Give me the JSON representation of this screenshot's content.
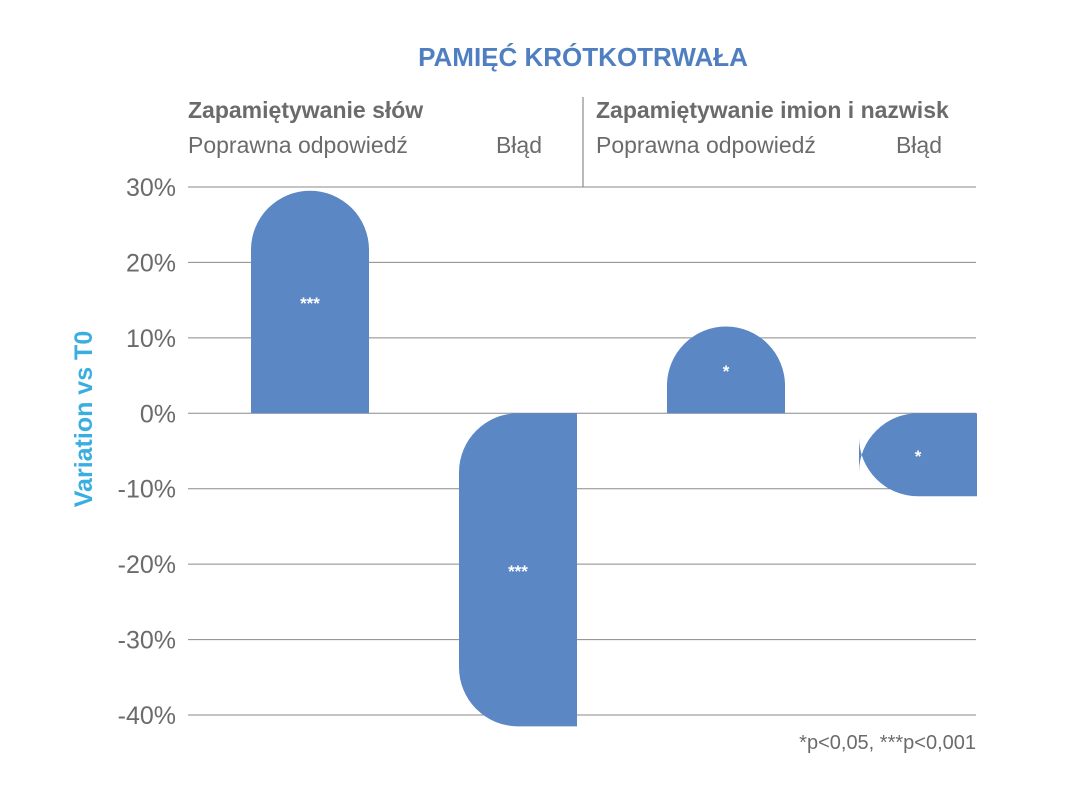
{
  "chart_data": {
    "type": "bar",
    "title": "PAMIĘĆ KRÓTKOTRWAŁA",
    "ylabel": "Variation vs T0",
    "ylim": [
      -40,
      30
    ],
    "yticks": [
      30,
      20,
      10,
      0,
      -10,
      -20,
      -30,
      -40
    ],
    "ytick_labels": [
      "30%",
      "20%",
      "10%",
      "0%",
      "-10%",
      "-20%",
      "-30%",
      "-40%"
    ],
    "groups": [
      {
        "name": "Zapamiętywanie słów",
        "categories": [
          "Poprawna odpowiedź",
          "Błąd"
        ]
      },
      {
        "name": "Zapamiętywanie imion i nazwisk",
        "categories": [
          "Poprawna odpowiedź",
          "Błąd"
        ]
      }
    ],
    "categories": [
      "Poprawna odpowiedź",
      "Błąd",
      "Poprawna odpowiedź",
      "Błąd"
    ],
    "values": [
      29.5,
      -41.5,
      11.5,
      -11
    ],
    "bar_labels": [
      "***",
      "***",
      "*",
      "*"
    ],
    "grid": true,
    "footnote": "*p<0,05, ***p<0,001"
  },
  "colors": {
    "bar": "#5b87c5",
    "title": "#4f7fc0",
    "ylabel": "#3aaee0",
    "grid": "#8a8a8a",
    "text": "#6b6b6b"
  }
}
